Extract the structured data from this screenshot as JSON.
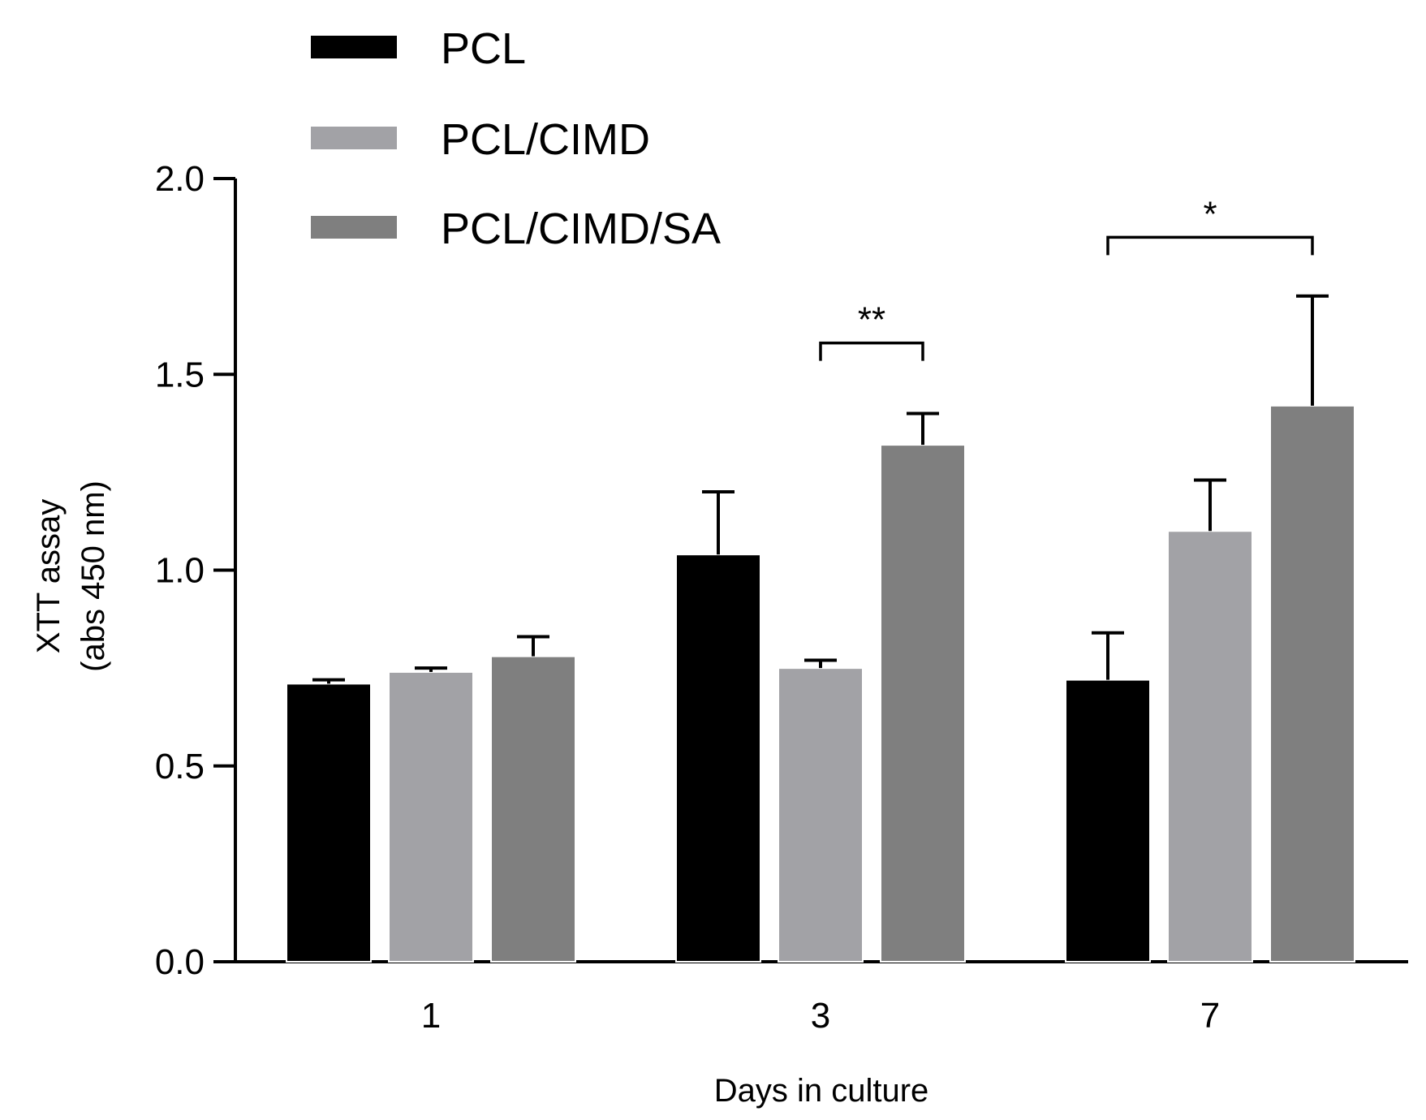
{
  "chart_data": {
    "type": "bar",
    "title": "",
    "xlabel": "Days in culture",
    "ylabel_lines": [
      "XTT assay",
      "(abs 450 nm)"
    ],
    "categories": [
      "1",
      "3",
      "7"
    ],
    "ylim": [
      0,
      2.0
    ],
    "yticks": [
      "0.0",
      "0.5",
      "1.0",
      "1.5",
      "2.0"
    ],
    "series": [
      {
        "name": "PCL",
        "color": "#000000",
        "values": [
          0.71,
          1.04,
          0.72
        ],
        "errors": [
          0.01,
          0.16,
          0.12
        ]
      },
      {
        "name": "PCL/CIMD",
        "color": "#a2a2a6",
        "values": [
          0.74,
          0.75,
          1.1
        ],
        "errors": [
          0.01,
          0.02,
          0.13
        ]
      },
      {
        "name": "PCL/CIMD/SA",
        "color": "#7f7f7f",
        "values": [
          0.78,
          1.32,
          1.42
        ],
        "errors": [
          0.05,
          0.08,
          0.28
        ]
      }
    ],
    "legend_position": "top-left",
    "significance": [
      {
        "category": "3",
        "from_series": 1,
        "to_series": 2,
        "label": "**",
        "level": 1.58
      },
      {
        "category": "7",
        "from_series": 0,
        "to_series": 2,
        "label": "*",
        "level": 1.85
      }
    ]
  }
}
